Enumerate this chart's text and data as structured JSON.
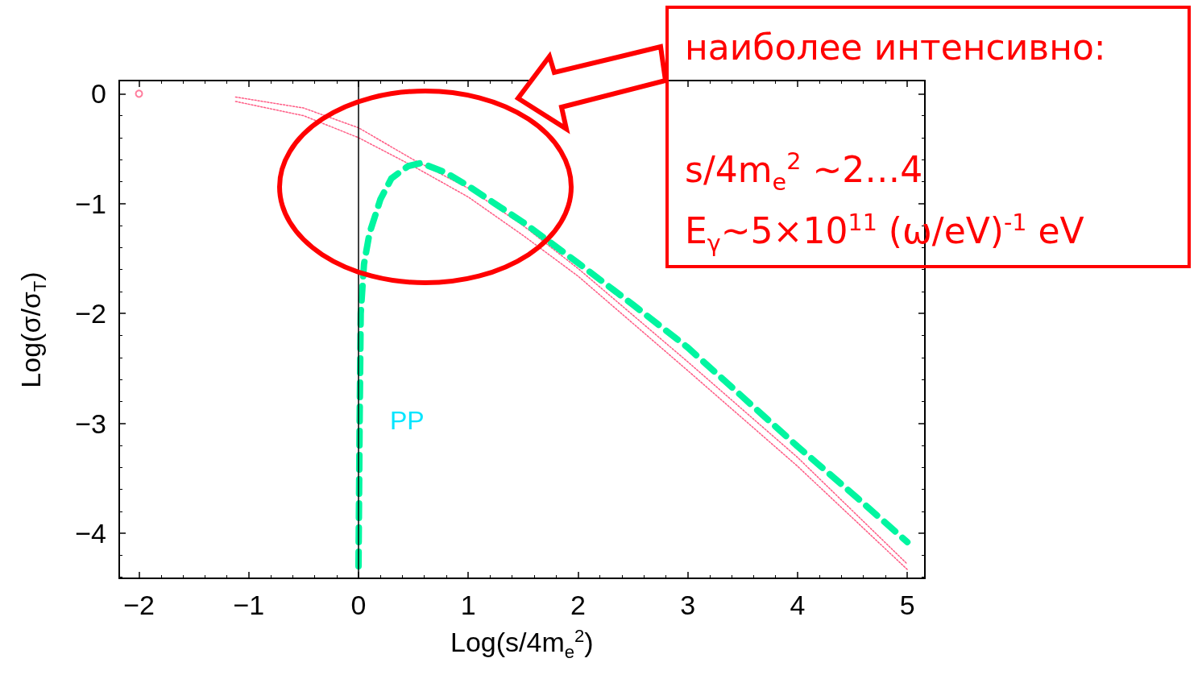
{
  "chart_data": {
    "type": "line",
    "xlabel": "Log(s/4m$_{e}$$^{2}$)",
    "ylabel": "Log(σ/σ$_{T}$)",
    "xlim": [
      -2.18,
      5.16
    ],
    "xticks": [
      -2,
      -1,
      0,
      1,
      2,
      3,
      4,
      5
    ],
    "ylim": [
      -4.41,
      0.12
    ],
    "yticks": [
      -4,
      -3,
      -2,
      -1,
      0
    ],
    "grid": false,
    "marker": "none",
    "ref_lines": [
      {
        "axis": "x",
        "value": 0,
        "color": "#000000",
        "line_style": "solid"
      }
    ],
    "series": [
      {
        "color": "#ff5c85",
        "line_style": "dotted",
        "x": [
          -1.12,
          -0.5,
          0,
          0.5,
          1,
          1.5,
          2,
          3,
          4,
          5
        ],
        "values": [
          -0.03,
          -0.13,
          -0.31,
          -0.6,
          -0.86,
          -1.2,
          -1.59,
          -2.44,
          -3.31,
          -4.28
        ]
      },
      {
        "color": "#ff5c85",
        "line_style": "dotted",
        "x": [
          -1.12,
          -0.5,
          0,
          0.5,
          1,
          1.5,
          2,
          3,
          4,
          5
        ],
        "values": [
          -0.07,
          -0.2,
          -0.4,
          -0.66,
          -0.94,
          -1.29,
          -1.66,
          -2.52,
          -3.39,
          -4.33
        ]
      },
      {
        "type": "scatter",
        "color": "#ff5c85",
        "marker": "circle",
        "x": [
          -2
        ],
        "values": [
          0
        ]
      },
      {
        "color": "#00f5a0",
        "line_style": "dashed",
        "x": [
          0,
          0.01,
          0.02,
          0.05,
          0.1,
          0.2,
          0.3,
          0.45,
          0.57,
          0.8,
          1,
          1.5,
          2,
          2.5,
          3,
          3.5,
          4,
          4.5,
          5
        ],
        "values": [
          -4.3,
          -3,
          -2,
          -1.55,
          -1.27,
          -0.96,
          -0.77,
          -0.66,
          -0.63,
          -0.72,
          -0.84,
          -1.17,
          -1.54,
          -1.92,
          -2.31,
          -2.76,
          -3.21,
          -3.64,
          -4.08
        ]
      }
    ],
    "annotations": [
      "PP",
      "наиболее интенсивно:",
      "s/4m$_{e}$$^{2}$ ~2…4",
      "E$_{γ}$~5×10$^{11}$ (ω/eV)$^{-1}$ eV"
    ]
  }
}
